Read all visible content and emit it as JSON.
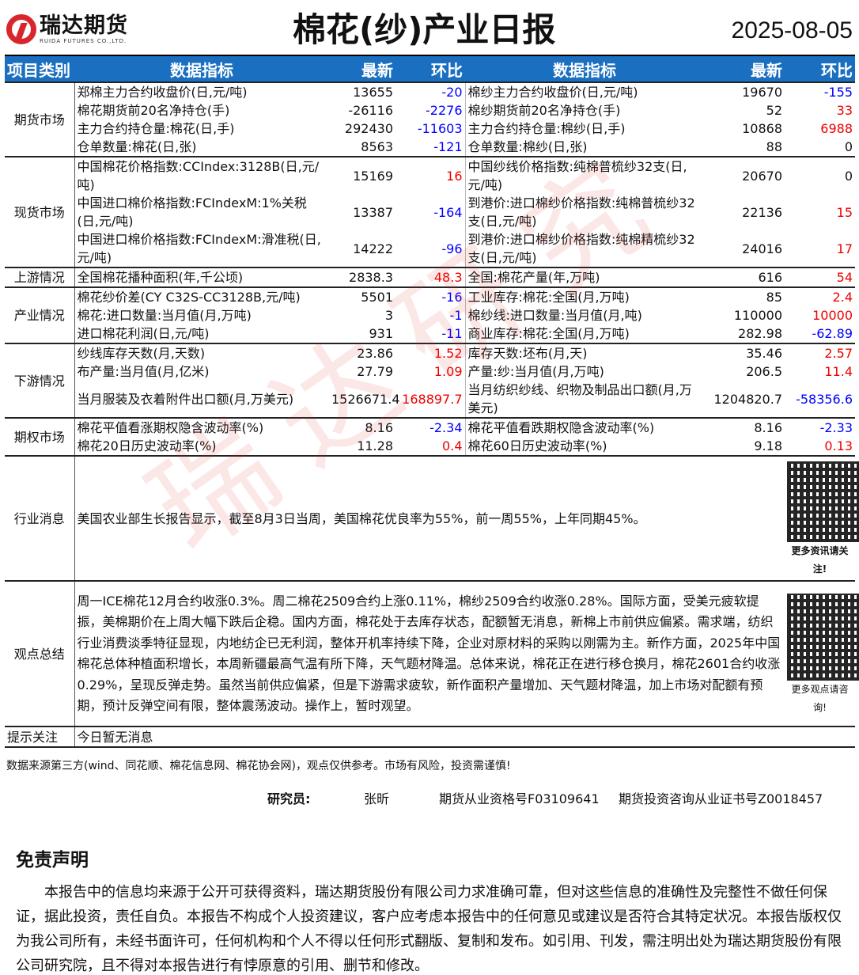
{
  "header": {
    "logo_cn": "瑞达期货",
    "logo_en": "RUIDA FUTURES CO.,LTD.",
    "title": "棉花(纱)产业日报",
    "date": "2025-08-05"
  },
  "columns": {
    "category": "项目类别",
    "indicator": "数据指标",
    "latest": "最新",
    "change": "环比"
  },
  "sections": [
    {
      "name": "期货市场",
      "rows": [
        [
          "郑棉主力合约收盘价(日,元/吨)",
          "13655",
          "-20",
          "棉纱主力合约收盘价(日,元/吨)",
          "19670",
          "-155"
        ],
        [
          "棉花期货前20名净持仓(手)",
          "-26116",
          "-2276",
          "棉纱期货前20名净持仓(手)",
          "52",
          "33"
        ],
        [
          "主力合约持仓量:棉花(日,手)",
          "292430",
          "-11603",
          "主力合约持仓量:棉纱(日,手)",
          "10868",
          "6988"
        ],
        [
          "仓单数量:棉花(日,张)",
          "8563",
          "-121",
          "仓单数量:棉纱(日,张)",
          "88",
          "0"
        ]
      ]
    },
    {
      "name": "现货市场",
      "rows": [
        [
          "中国棉花价格指数:CCIndex:3128B(日,元/吨)",
          "15169",
          "16",
          "中国纱线价格指数:纯棉普梳纱32支(日,元/吨)",
          "20670",
          "0"
        ],
        [
          "中国进口棉价格指数:FCIndexM:1%关税(日,元/吨)",
          "13387",
          "-164",
          "到港价:进口棉纱价格指数:纯棉普梳纱32支(日,元/吨)",
          "22136",
          "15"
        ],
        [
          "中国进口棉价格指数:FCIndexM:滑准税(日,元/吨)",
          "14222",
          "-96",
          "到港价:进口棉纱价格指数:纯棉精梳纱32支(日,元/吨)",
          "24016",
          "17"
        ]
      ]
    },
    {
      "name": "上游情况",
      "rows": [
        [
          "全国棉花播种面积(年,千公顷)",
          "2838.3",
          "48.3",
          "全国:棉花产量(年,万吨)",
          "616",
          "54"
        ]
      ]
    },
    {
      "name": "产业情况",
      "rows": [
        [
          "棉花纱价差(CY C32S-CC3128B,元/吨)",
          "5501",
          "-16",
          "工业库存:棉花:全国(月,万吨)",
          "85",
          "2.4"
        ],
        [
          "棉花:进口数量:当月值(月,万吨)",
          "3",
          "-1",
          "棉纱线:进口数量:当月值(月,吨)",
          "110000",
          "10000"
        ],
        [
          "进口棉花利润(日,元/吨)",
          "931",
          "-11",
          "商业库存:棉花:全国(月,万吨)",
          "282.98",
          "-62.89"
        ]
      ]
    },
    {
      "name": "下游情况",
      "rows": [
        [
          "纱线库存天数(月,天数)",
          "23.86",
          "1.52",
          "库存天数:坯布(月,天)",
          "35.46",
          "2.57"
        ],
        [
          "布产量:当月值(月,亿米)",
          "27.79",
          "1.09",
          "产量:纱:当月值(月,万吨)",
          "206.5",
          "11.4"
        ],
        [
          "当月服装及衣着附件出口额(月,万美元)",
          "1526671.4",
          "168897.7",
          "当月纺织纱线、织物及制品出口额(月,万美元)",
          "1204820.7",
          "-58356.6"
        ]
      ]
    },
    {
      "name": "期权市场",
      "rows": [
        [
          "棉花平值看涨期权隐含波动率(%)",
          "8.16",
          "-2.34",
          "棉花平值看跌期权隐含波动率(%)",
          "8.16",
          "-2.33"
        ],
        [
          "棉花20日历史波动率(%)",
          "11.28",
          "0.4",
          "棉花60日历史波动率(%)",
          "9.18",
          "0.13"
        ]
      ]
    }
  ],
  "news": {
    "label": "行业消息",
    "text": "美国农业部生长报告显示，截至8月3日当周，美国棉花优良率为55%，前一周55%，上年同期45%。",
    "qr_caption": "更多资讯请关注!"
  },
  "view": {
    "label": "观点总结",
    "text": "周一ICE棉花12月合约收涨0.3%。周二棉花2509合约上涨0.11%，棉纱2509合约收涨0.28%。国际方面，受美元疲软提振，美棉期价在上周大幅下跌后企稳。国内方面，棉花处于去库存状态，配额暂无消息，新棉上市前供应偏紧。需求端，纺织行业消费淡季特征显现，内地纺企已无利润，整体开机率持续下降，企业对原材料的采购以刚需为主。新作方面，2025年中国棉花总体种植面积增长，本周新疆最高气温有所下降，天气题材降温。总体来说，棉花正在进行移仓换月，棉花2601合约收涨0.29%，呈现反弹走势。虽然当前供应偏紧，但是下游需求疲软，新作面积产量增加、天气题材降温，加上市场对配额有预期，预计反弹空间有限，整体震荡波动。操作上，暂时观望。",
    "qr_caption": "更多观点请咨询!"
  },
  "tips": {
    "label": "提示关注",
    "text": "今日暂无消息"
  },
  "source": "数据来源第三方(wind、同花顺、棉花信息网、棉花协会网)，观点仅供参考。市场有风险，投资需谨慎!",
  "researcher": {
    "label": "研究员:",
    "name": "张昕",
    "qual": "期货从业资格号F03109641",
    "cert": "期货投资咨询从业证书号Z0018457"
  },
  "watermark": "瑞达研究",
  "disclaimer": {
    "title": "免责声明",
    "text": "本报告中的信息均来源于公开可获得资料，瑞达期货股份有限公司力求准确可靠，但对这些信息的准确性及完整性不做任何保证，据此投资，责任自负。本报告不构成个人投资建议，客户应考虑本报告中的任何意见或建议是否符合其特定状况。本报告版权仅为我公司所有，未经书面许可，任何机构和个人不得以任何形式翻版、复制和发布。如引用、刊发，需注明出处为瑞达期货股份有限公司研究院，且不得对本报告进行有悖原意的引用、删节和修改。"
  },
  "colors": {
    "header_bg": "#1b6fc0",
    "positive": "#e00000",
    "negative": "#0000ff",
    "brand": "#d9262c"
  }
}
